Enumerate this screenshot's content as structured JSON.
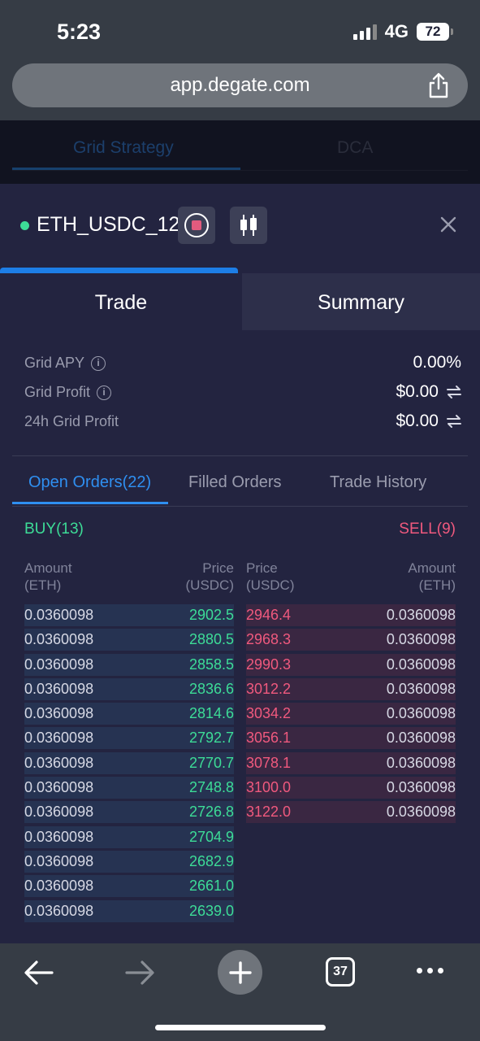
{
  "status_bar": {
    "time": "5:23",
    "network": "4G",
    "battery": "72"
  },
  "browser": {
    "url": "app.degate.com",
    "tabs_count": "37"
  },
  "background_tabs": {
    "grid": "Grid Strategy",
    "dca": "DCA"
  },
  "bot": {
    "name": "ETH_USDC_12",
    "status_color": "#3ddc97"
  },
  "tabs": {
    "trade": "Trade",
    "summary": "Summary"
  },
  "metrics": [
    {
      "label": "Grid APY",
      "value": "0.00%"
    },
    {
      "label": "Grid Profit",
      "value": "$0.00"
    },
    {
      "label": "24h Grid Profit",
      "value": "$0.00"
    }
  ],
  "order_tabs": {
    "open": "Open Orders(22)",
    "filled": "Filled Orders",
    "history": "Trade History"
  },
  "buy_label": "BUY(13)",
  "sell_label": "SELL(9)",
  "headers": {
    "buy_amount": "Amount",
    "buy_amount_unit": "(ETH)",
    "buy_price": "Price",
    "buy_price_unit": "(USDC)",
    "sell_price": "Price",
    "sell_price_unit": "(USDC)",
    "sell_amount": "Amount",
    "sell_amount_unit": "(ETH)"
  },
  "buy_orders": [
    {
      "amount": "0.0360098",
      "price": "2902.5"
    },
    {
      "amount": "0.0360098",
      "price": "2880.5"
    },
    {
      "amount": "0.0360098",
      "price": "2858.5"
    },
    {
      "amount": "0.0360098",
      "price": "2836.6"
    },
    {
      "amount": "0.0360098",
      "price": "2814.6"
    },
    {
      "amount": "0.0360098",
      "price": "2792.7"
    },
    {
      "amount": "0.0360098",
      "price": "2770.7"
    },
    {
      "amount": "0.0360098",
      "price": "2748.8"
    },
    {
      "amount": "0.0360098",
      "price": "2726.8"
    },
    {
      "amount": "0.0360098",
      "price": "2704.9"
    },
    {
      "amount": "0.0360098",
      "price": "2682.9"
    },
    {
      "amount": "0.0360098",
      "price": "2661.0"
    },
    {
      "amount": "0.0360098",
      "price": "2639.0"
    }
  ],
  "sell_orders": [
    {
      "price": "2946.4",
      "amount": "0.0360098"
    },
    {
      "price": "2968.3",
      "amount": "0.0360098"
    },
    {
      "price": "2990.3",
      "amount": "0.0360098"
    },
    {
      "price": "3012.2",
      "amount": "0.0360098"
    },
    {
      "price": "3034.2",
      "amount": "0.0360098"
    },
    {
      "price": "3056.1",
      "amount": "0.0360098"
    },
    {
      "price": "3078.1",
      "amount": "0.0360098"
    },
    {
      "price": "3100.0",
      "amount": "0.0360098"
    },
    {
      "price": "3122.0",
      "amount": "0.0360098"
    }
  ]
}
